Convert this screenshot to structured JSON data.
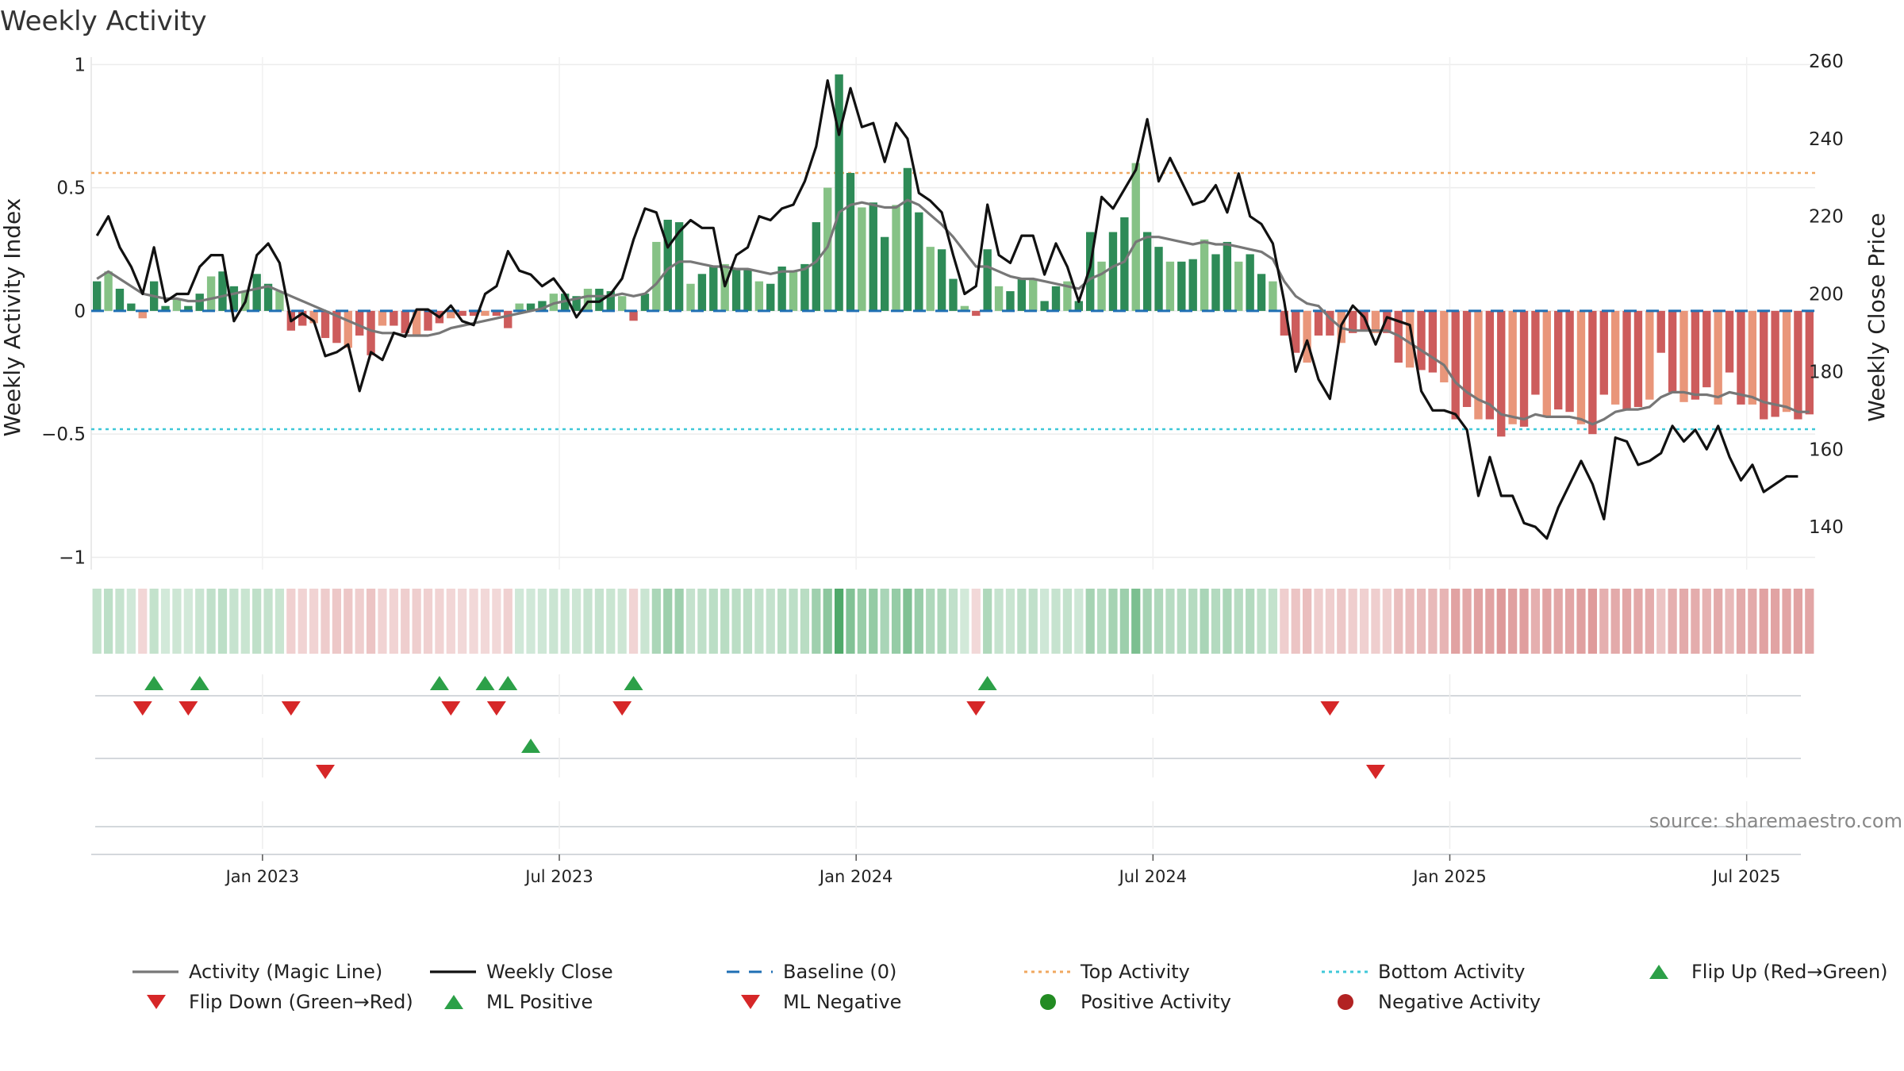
{
  "chart_data": {
    "type": "bar",
    "title": "Weekly Activity",
    "ylabel_left": "Weekly Activity Index",
    "ylabel_right": "Weekly Close Price",
    "ylim_left": [
      -1.05,
      1.03
    ],
    "ylim_right": [
      129,
      261
    ],
    "yticks_left": [
      {
        "v": 1,
        "label": "1"
      },
      {
        "v": 0.5,
        "label": "0.5"
      },
      {
        "v": 0,
        "label": "0"
      },
      {
        "v": -0.5,
        "label": "−0.5"
      },
      {
        "v": -1,
        "label": "−1"
      }
    ],
    "yticks_right": [
      {
        "v": 260,
        "label": "260"
      },
      {
        "v": 240,
        "label": "240"
      },
      {
        "v": 220,
        "label": "220"
      },
      {
        "v": 200,
        "label": "200"
      },
      {
        "v": 180,
        "label": "180"
      },
      {
        "v": 160,
        "label": "160"
      },
      {
        "v": 140,
        "label": "140"
      }
    ],
    "xticks": [
      {
        "i": 14.5,
        "label": "Jan 2023"
      },
      {
        "i": 40.5,
        "label": "Jul 2023"
      },
      {
        "i": 66.5,
        "label": "Jan 2024"
      },
      {
        "i": 92.5,
        "label": "Jul 2024"
      },
      {
        "i": 118.5,
        "label": "Jan 2025"
      },
      {
        "i": 144.5,
        "label": "Jul 2025"
      }
    ],
    "reference_lines": {
      "baseline": 0,
      "top_activity": 0.56,
      "bottom_activity": -0.48
    },
    "activity": [
      0.12,
      0.16,
      0.09,
      0.03,
      -0.03,
      0.12,
      0.02,
      0.05,
      0.02,
      0.07,
      0.14,
      0.16,
      0.1,
      0.08,
      0.15,
      0.11,
      0.08,
      -0.08,
      -0.06,
      -0.05,
      -0.11,
      -0.13,
      -0.15,
      -0.1,
      -0.18,
      -0.06,
      -0.06,
      -0.09,
      -0.1,
      -0.08,
      -0.05,
      -0.03,
      -0.02,
      -0.02,
      -0.02,
      -0.02,
      -0.07,
      0.03,
      0.03,
      0.04,
      0.07,
      0.07,
      0.06,
      0.09,
      0.09,
      0.08,
      0.06,
      -0.04,
      0.07,
      0.28,
      0.37,
      0.36,
      0.11,
      0.15,
      0.18,
      0.19,
      0.17,
      0.17,
      0.12,
      0.11,
      0.18,
      0.16,
      0.19,
      0.36,
      0.5,
      0.96,
      0.56,
      0.42,
      0.44,
      0.3,
      0.43,
      0.58,
      0.4,
      0.26,
      0.25,
      0.13,
      0.02,
      -0.02,
      0.25,
      0.1,
      0.08,
      0.13,
      0.13,
      0.04,
      0.1,
      0.12,
      0.04,
      0.32,
      0.2,
      0.32,
      0.38,
      0.6,
      0.32,
      0.26,
      0.2,
      0.2,
      0.21,
      0.29,
      0.23,
      0.28,
      0.2,
      0.23,
      0.15,
      0.12,
      -0.1,
      -0.17,
      -0.21,
      -0.1,
      -0.1,
      -0.13,
      -0.09,
      -0.08,
      -0.09,
      -0.09,
      -0.21,
      -0.23,
      -0.24,
      -0.25,
      -0.29,
      -0.44,
      -0.39,
      -0.44,
      -0.44,
      -0.51,
      -0.46,
      -0.47,
      -0.34,
      -0.43,
      -0.4,
      -0.41,
      -0.46,
      -0.5,
      -0.34,
      -0.38,
      -0.4,
      -0.39,
      -0.36,
      -0.17,
      -0.33,
      -0.37,
      -0.36,
      -0.31,
      -0.38,
      -0.25,
      -0.38,
      -0.38,
      -0.44,
      -0.43,
      -0.41,
      -0.44,
      -0.42
    ],
    "magic_line": [
      0.13,
      0.16,
      0.13,
      0.1,
      0.07,
      0.06,
      0.05,
      0.05,
      0.04,
      0.04,
      0.05,
      0.06,
      0.07,
      0.08,
      0.09,
      0.1,
      0.08,
      0.06,
      0.04,
      0.02,
      0.0,
      -0.02,
      -0.04,
      -0.06,
      -0.08,
      -0.09,
      -0.09,
      -0.1,
      -0.1,
      -0.1,
      -0.09,
      -0.07,
      -0.06,
      -0.05,
      -0.04,
      -0.03,
      -0.02,
      -0.01,
      0.0,
      0.01,
      0.03,
      0.04,
      0.05,
      0.06,
      0.06,
      0.06,
      0.07,
      0.06,
      0.07,
      0.11,
      0.17,
      0.2,
      0.2,
      0.19,
      0.18,
      0.18,
      0.17,
      0.17,
      0.16,
      0.15,
      0.16,
      0.16,
      0.17,
      0.2,
      0.26,
      0.4,
      0.43,
      0.44,
      0.43,
      0.42,
      0.42,
      0.45,
      0.43,
      0.39,
      0.35,
      0.3,
      0.24,
      0.18,
      0.18,
      0.16,
      0.14,
      0.13,
      0.13,
      0.12,
      0.11,
      0.1,
      0.09,
      0.13,
      0.15,
      0.18,
      0.2,
      0.28,
      0.3,
      0.3,
      0.29,
      0.28,
      0.27,
      0.28,
      0.27,
      0.27,
      0.26,
      0.25,
      0.24,
      0.21,
      0.12,
      0.06,
      0.03,
      0.02,
      -0.03,
      -0.07,
      -0.08,
      -0.08,
      -0.08,
      -0.08,
      -0.1,
      -0.13,
      -0.16,
      -0.19,
      -0.22,
      -0.29,
      -0.33,
      -0.36,
      -0.38,
      -0.42,
      -0.43,
      -0.44,
      -0.42,
      -0.43,
      -0.43,
      -0.43,
      -0.44,
      -0.46,
      -0.44,
      -0.41,
      -0.4,
      -0.4,
      -0.39,
      -0.35,
      -0.33,
      -0.33,
      -0.34,
      -0.34,
      -0.35,
      -0.33,
      -0.34,
      -0.35,
      -0.37,
      -0.38,
      -0.39,
      -0.41,
      -0.41
    ],
    "weekly_close": [
      215,
      220,
      212,
      207,
      200,
      212,
      198,
      200,
      200,
      207,
      210,
      210,
      193,
      198,
      210,
      213,
      208,
      193,
      195,
      193,
      184,
      185,
      187,
      175,
      185,
      183,
      190,
      189,
      196,
      196,
      194,
      197,
      193,
      192,
      200,
      202,
      211,
      206,
      205,
      202,
      204,
      200,
      194,
      198,
      198,
      200,
      204,
      214,
      222,
      221,
      212,
      216,
      219,
      217,
      217,
      202,
      210,
      212,
      220,
      219,
      222,
      223,
      229,
      238,
      255,
      241,
      253,
      243,
      244,
      234,
      244,
      240,
      226,
      224,
      221,
      210,
      200,
      202,
      223,
      210,
      208,
      215,
      215,
      205,
      213,
      207,
      198,
      207,
      225,
      222,
      227,
      232,
      245,
      229,
      235,
      229,
      223,
      224,
      228,
      221,
      231,
      220,
      218,
      213,
      198,
      180,
      188,
      178,
      173,
      192,
      197,
      194,
      187,
      194,
      193,
      192,
      175,
      170,
      170,
      169,
      165,
      148,
      158,
      148,
      148,
      141,
      140,
      137,
      145,
      151,
      157,
      151,
      142,
      163,
      162,
      156,
      157,
      159,
      166,
      162,
      165,
      160,
      166,
      158,
      152,
      156,
      149,
      151,
      153,
      153
    ],
    "flip_up": [
      5,
      9,
      30,
      34,
      36,
      47,
      78
    ],
    "flip_down": [
      4,
      8,
      17,
      31,
      35,
      46,
      77,
      108
    ],
    "ml_positive": [
      38
    ],
    "ml_negative": [
      20,
      112
    ],
    "colors": {
      "bar_pos_strong": "#2e8b57",
      "bar_pos_light": "#86c286",
      "bar_neg_strong": "#cd5c5c",
      "bar_neg_light": "#e9967a",
      "magic_line": "#777777",
      "close": "#111111",
      "baseline": "#1f6fb4",
      "top_activity": "#f0a860",
      "bottom_activity": "#3fc8d8",
      "flip_up": "#2ca048",
      "flip_down": "#d62728",
      "positive_activity": "#228b22",
      "negative_activity": "#b22222"
    }
  },
  "legend": [
    {
      "label": "Activity (Magic Line)",
      "kind": "line-solid-gray"
    },
    {
      "label": "Weekly Close",
      "kind": "line-solid-black"
    },
    {
      "label": "Baseline (0)",
      "kind": "line-dash-blue"
    },
    {
      "label": "Top Activity",
      "kind": "line-dot-orange"
    },
    {
      "label": "Bottom Activity",
      "kind": "line-dot-cyan"
    },
    {
      "label": "Flip Up (Red→Green)",
      "kind": "triangle-up-green"
    },
    {
      "label": "Flip Down (Green→Red)",
      "kind": "triangle-down-red"
    },
    {
      "label": "ML Positive",
      "kind": "triangle-up-green"
    },
    {
      "label": "ML Negative",
      "kind": "triangle-down-red"
    },
    {
      "label": "Positive Activity",
      "kind": "dot-green"
    },
    {
      "label": "Negative Activity",
      "kind": "dot-red"
    }
  ],
  "source": "source: sharemaestro.com"
}
